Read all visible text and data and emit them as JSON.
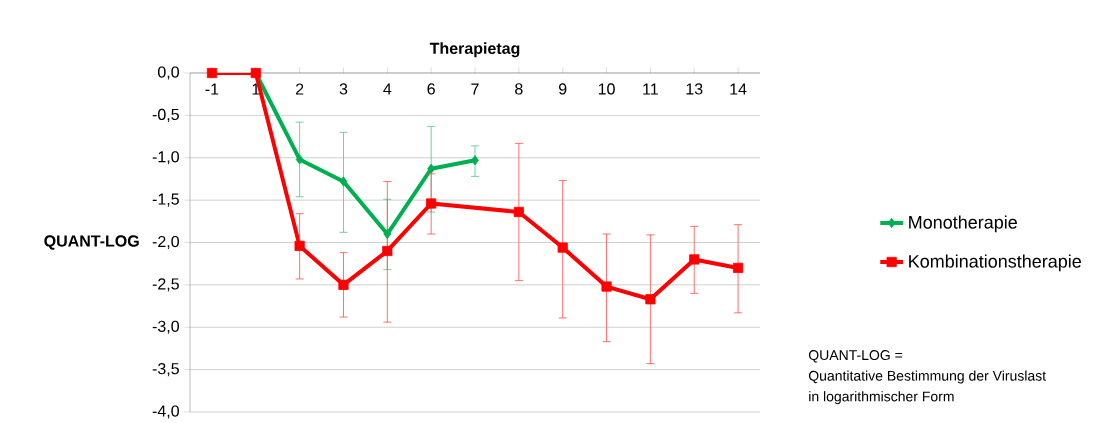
{
  "chart_data": {
    "type": "line",
    "xlabel": "Therapietag",
    "ylabel": "QUANT-LOG",
    "categories": [
      "-1",
      "1",
      "2",
      "3",
      "4",
      "6",
      "7",
      "8",
      "9",
      "10",
      "11",
      "13",
      "14"
    ],
    "series": [
      {
        "name": "Monotherapie",
        "color": "#00b050",
        "marker": "diamond",
        "values": [
          0,
          0,
          -1.02,
          -1.28,
          -1.9,
          -1.13,
          -1.03,
          null,
          null,
          null,
          null,
          null,
          null
        ],
        "errors": [
          null,
          null,
          [
            -1.46,
            -0.58
          ],
          [
            -1.88,
            -0.7
          ],
          [
            -2.32,
            -1.49
          ],
          [
            -1.64,
            -0.63
          ],
          [
            -1.22,
            -0.86
          ],
          null,
          null,
          null,
          null,
          null,
          null
        ]
      },
      {
        "name": "Kombinationstherapie",
        "color": "#ff0000",
        "marker": "square",
        "values": [
          0,
          0,
          -2.04,
          -2.5,
          -2.1,
          -1.54,
          null,
          -1.64,
          -2.06,
          -2.52,
          -2.67,
          -2.2,
          -2.3
        ],
        "errors": [
          null,
          null,
          [
            -2.43,
            -1.66
          ],
          [
            -2.88,
            -2.12
          ],
          [
            -2.94,
            -1.28
          ],
          [
            -1.9,
            -1.19
          ],
          null,
          [
            -2.45,
            -0.83
          ],
          [
            -2.89,
            -1.27
          ],
          [
            -3.17,
            -1.9
          ],
          [
            -3.43,
            -1.91
          ],
          [
            -2.6,
            -1.81
          ],
          [
            -2.83,
            -1.79
          ]
        ]
      }
    ],
    "ylim": [
      -4,
      0
    ],
    "yticks": [
      {
        "value": 0,
        "label": "0,0"
      },
      {
        "value": -0.5,
        "label": "-0,5"
      },
      {
        "value": -1,
        "label": "-1,0"
      },
      {
        "value": -1.5,
        "label": "-1,5"
      },
      {
        "value": -2,
        "label": "-2,0"
      },
      {
        "value": -2.5,
        "label": "-2,5"
      },
      {
        "value": -3,
        "label": "-3,0"
      },
      {
        "value": -3.5,
        "label": "-3,5"
      },
      {
        "value": -4,
        "label": "-4,0"
      }
    ],
    "grid": "y",
    "legend": "right",
    "annotations": [
      "QUANT-LOG =",
      "Quantitative Bestimmung der Viruslast",
      "in logarithmischer Form"
    ]
  }
}
